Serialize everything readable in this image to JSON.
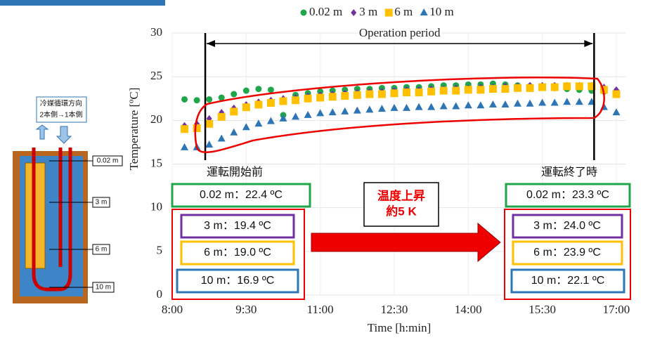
{
  "chart_data": {
    "type": "scatter",
    "x_label": "Time [h:min]",
    "y_label": "Temperature [ºC]",
    "xlim": [
      8,
      17.2
    ],
    "xticks": [
      {
        "value": 8,
        "label": "8:00"
      },
      {
        "value": 9.5,
        "label": "9:30"
      },
      {
        "value": 11,
        "label": "11:00"
      },
      {
        "value": 12.5,
        "label": "12:30"
      },
      {
        "value": 14,
        "label": "14:00"
      },
      {
        "value": 15.5,
        "label": "15:30"
      },
      {
        "value": 17,
        "label": "17:00"
      }
    ],
    "ylim": [
      0,
      30
    ],
    "yticks": [
      0,
      5,
      10,
      15,
      20,
      25,
      30
    ],
    "grid": true,
    "legend": "top",
    "x": [
      8.25,
      8.5,
      8.75,
      9,
      9.25,
      9.5,
      9.75,
      10,
      10.25,
      10.5,
      10.75,
      11,
      11.25,
      11.5,
      11.75,
      12,
      12.25,
      12.5,
      12.75,
      13,
      13.25,
      13.5,
      13.75,
      14,
      14.25,
      14.5,
      14.75,
      15,
      15.25,
      15.5,
      15.75,
      16,
      16.25,
      16.5,
      16.75,
      17
    ],
    "series": [
      {
        "name": "0.02 m",
        "color": "#1fa64a",
        "marker": "circle",
        "values": [
          22.4,
          22.3,
          22.4,
          22.6,
          23.0,
          23.4,
          23.6,
          23.5,
          20.6,
          22.9,
          23.1,
          23.3,
          23.4,
          23.5,
          23.6,
          23.6,
          23.7,
          23.7,
          23.8,
          23.8,
          23.9,
          24.0,
          24.0,
          24.1,
          24.1,
          24.2,
          24.1,
          24.0,
          23.9,
          23.8,
          23.7,
          23.6,
          23.5,
          23.4,
          23.3,
          23.3
        ]
      },
      {
        "name": "3 m",
        "color": "#7030a0",
        "marker": "diamond",
        "values": [
          19.4,
          19.6,
          20.2,
          20.9,
          21.4,
          21.8,
          22.1,
          22.3,
          22.5,
          22.6,
          22.8,
          22.9,
          23.0,
          23.1,
          23.2,
          23.3,
          23.3,
          23.4,
          23.5,
          23.5,
          23.6,
          23.6,
          23.7,
          23.7,
          23.8,
          23.8,
          23.9,
          23.9,
          24.0,
          24.0,
          24.0,
          24.0,
          24.0,
          24.0,
          23.8,
          23.5
        ]
      },
      {
        "name": "6 m",
        "color": "#ffc000",
        "marker": "square",
        "values": [
          19.0,
          19.1,
          19.6,
          20.4,
          21.0,
          21.5,
          21.8,
          22.0,
          22.2,
          22.3,
          22.5,
          22.6,
          22.7,
          22.8,
          22.9,
          23.0,
          23.0,
          23.1,
          23.2,
          23.2,
          23.3,
          23.4,
          23.4,
          23.5,
          23.5,
          23.6,
          23.6,
          23.7,
          23.7,
          23.8,
          23.8,
          23.9,
          23.9,
          23.9,
          23.5,
          23.0
        ]
      },
      {
        "name": "10 m",
        "color": "#2e75b6",
        "marker": "triangle",
        "values": [
          16.9,
          16.9,
          17.2,
          17.9,
          18.6,
          19.2,
          19.6,
          19.9,
          20.2,
          20.4,
          20.6,
          20.8,
          20.9,
          21.0,
          21.1,
          21.2,
          21.3,
          21.4,
          21.4,
          21.5,
          21.5,
          21.6,
          21.6,
          21.7,
          21.7,
          21.8,
          21.8,
          21.9,
          21.9,
          22.0,
          22.0,
          22.1,
          22.1,
          22.1,
          21.5,
          20.9
        ]
      }
    ],
    "operation_period": {
      "label": "Operation period",
      "start": 8.67,
      "end": 16.55
    }
  },
  "before": {
    "heading": "運転開始前",
    "readings": [
      "0.02 m：22.4 ºC",
      "3 m：19.4 ºC",
      "6 m：19.0 ºC",
      "10 m：16.9 ºC"
    ]
  },
  "after": {
    "heading": "運転終了時",
    "readings": [
      "0.02 m：23.3 ºC",
      "3 m：24.0 ºC",
      "6 m：23.9 ºC",
      "10 m：22.1 ºC"
    ]
  },
  "callout": [
    "温度上昇",
    "約5 K"
  ],
  "diagram": {
    "caption": [
      "冷媒循環方向",
      "2本側→1本側"
    ],
    "depths": [
      "0.02 m",
      "3 m",
      "6 m",
      "10 m"
    ]
  }
}
